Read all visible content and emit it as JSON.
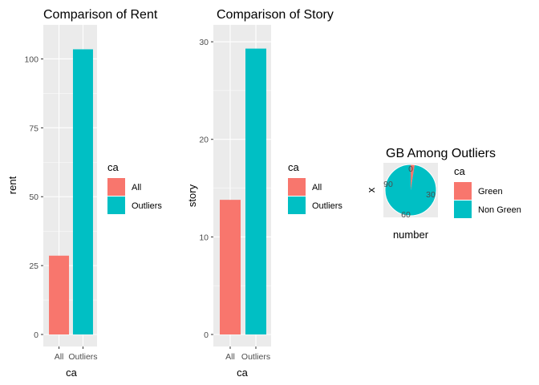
{
  "chart_data": [
    {
      "type": "bar",
      "title": "Comparison of Rent",
      "xlabel": "ca",
      "ylabel": "rent",
      "categories": [
        "All",
        "Outliers"
      ],
      "values": [
        28.6,
        103.5
      ],
      "ylim": [
        0,
        108
      ],
      "yticks": [
        0,
        25,
        50,
        75,
        100
      ],
      "colors": [
        "#F8766D",
        "#00BFC4"
      ],
      "grid": true,
      "legend": {
        "title": "ca",
        "entries": [
          "All",
          "Outliers"
        ],
        "position": "right"
      }
    },
    {
      "type": "bar",
      "title": "Comparison of Story",
      "xlabel": "ca",
      "ylabel": "story",
      "categories": [
        "All",
        "Outliers"
      ],
      "values": [
        13.8,
        29.3
      ],
      "ylim": [
        0,
        30.5
      ],
      "yticks": [
        0,
        10,
        20,
        30
      ],
      "colors": [
        "#F8766D",
        "#00BFC4"
      ],
      "grid": true,
      "legend": {
        "title": "ca",
        "entries": [
          "All",
          "Outliers"
        ],
        "position": "right"
      }
    },
    {
      "type": "pie",
      "title": "GB Among Outliers",
      "xlabel": "number",
      "ylabel": "x",
      "categories": [
        "Green",
        "Non Green"
      ],
      "values": [
        3,
        117
      ],
      "angle_ticks": [
        "0",
        "30",
        "60",
        "90"
      ],
      "angle_max": 120,
      "colors": [
        "#F8766D",
        "#00BFC4"
      ],
      "legend": {
        "title": "ca",
        "entries": [
          "Green",
          "Non Green"
        ],
        "position": "right"
      }
    }
  ]
}
